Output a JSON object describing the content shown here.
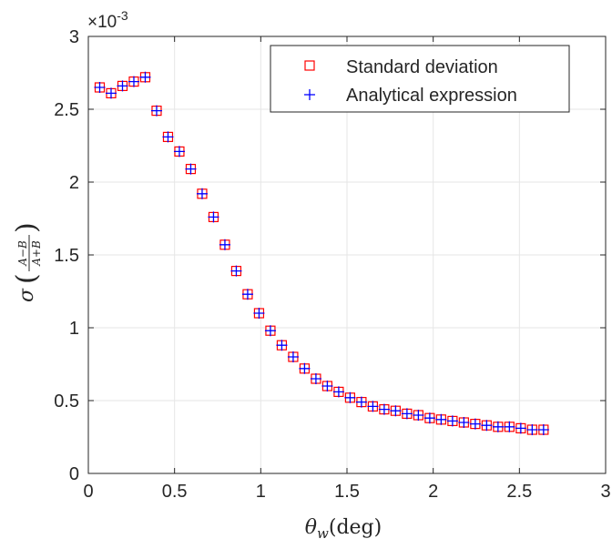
{
  "chart_data": {
    "type": "scatter",
    "xlabel": {
      "main": "θ",
      "sub": "w",
      "unit": "(deg)"
    },
    "ylabel": {
      "main": "σ",
      "num": "A−B",
      "den": "A+B"
    },
    "exponent_label": {
      "base": "×10",
      "power": "-3"
    },
    "xlim": [
      0,
      3
    ],
    "ylim": [
      0,
      3
    ],
    "y_scale_factor": 0.001,
    "xticks": [
      0,
      0.5,
      1,
      1.5,
      2,
      2.5,
      3
    ],
    "xtick_labels": [
      "0",
      "0.5",
      "1",
      "1.5",
      "2",
      "2.5",
      "3"
    ],
    "yticks": [
      0,
      0.5,
      1,
      1.5,
      2,
      2.5,
      3
    ],
    "ytick_labels": [
      "0",
      "0.5",
      "1",
      "1.5",
      "2",
      "2.5",
      "3"
    ],
    "grid": true,
    "legend_position": "top-right",
    "x": [
      0.066,
      0.132,
      0.198,
      0.264,
      0.33,
      0.396,
      0.462,
      0.528,
      0.594,
      0.66,
      0.726,
      0.792,
      0.858,
      0.924,
      0.99,
      1.056,
      1.122,
      1.188,
      1.254,
      1.32,
      1.386,
      1.452,
      1.518,
      1.584,
      1.65,
      1.716,
      1.782,
      1.848,
      1.914,
      1.98,
      2.046,
      2.112,
      2.178,
      2.244,
      2.31,
      2.376,
      2.442,
      2.508,
      2.574,
      2.64
    ],
    "series": [
      {
        "name": "Standard deviation",
        "marker": "square",
        "color": "#ff0000",
        "values": [
          2.65,
          2.61,
          2.66,
          2.69,
          2.72,
          2.49,
          2.31,
          2.21,
          2.09,
          1.92,
          1.76,
          1.57,
          1.39,
          1.23,
          1.1,
          0.98,
          0.88,
          0.8,
          0.72,
          0.65,
          0.6,
          0.56,
          0.52,
          0.49,
          0.46,
          0.44,
          0.43,
          0.41,
          0.4,
          0.38,
          0.37,
          0.36,
          0.35,
          0.34,
          0.33,
          0.32,
          0.32,
          0.31,
          0.3,
          0.3
        ]
      },
      {
        "name": "Analytical expression",
        "marker": "plus",
        "color": "#0000ff",
        "values": [
          2.65,
          2.61,
          2.66,
          2.69,
          2.72,
          2.49,
          2.31,
          2.21,
          2.09,
          1.92,
          1.76,
          1.57,
          1.39,
          1.23,
          1.1,
          0.98,
          0.88,
          0.8,
          0.72,
          0.65,
          0.6,
          0.56,
          0.52,
          0.49,
          0.46,
          0.44,
          0.43,
          0.41,
          0.4,
          0.38,
          0.37,
          0.36,
          0.35,
          0.34,
          0.33,
          0.32,
          0.32,
          0.31,
          0.3,
          0.3
        ]
      }
    ]
  }
}
